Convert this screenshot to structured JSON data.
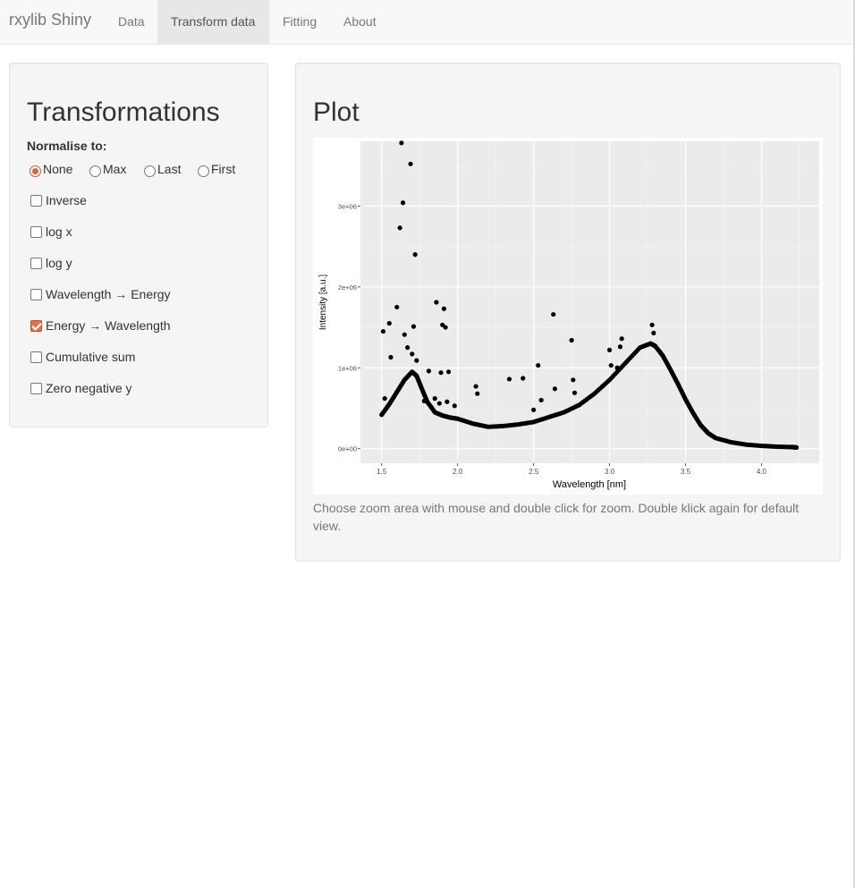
{
  "navbar": {
    "brand": "rxylib Shiny",
    "tabs": [
      {
        "label": "Data",
        "active": false
      },
      {
        "label": "Transform data",
        "active": true
      },
      {
        "label": "Fitting",
        "active": false
      },
      {
        "label": "About",
        "active": false
      }
    ]
  },
  "sidebar": {
    "title": "Transformations",
    "normalise_label": "Normalise to:",
    "normalise_options": [
      {
        "label": "None",
        "checked": true
      },
      {
        "label": "Max",
        "checked": false
      },
      {
        "label": "Last",
        "checked": false
      },
      {
        "label": "First",
        "checked": false
      }
    ],
    "checkboxes": [
      {
        "label": "Inverse",
        "checked": false
      },
      {
        "label": "log x",
        "checked": false
      },
      {
        "label": "log y",
        "checked": false
      },
      {
        "label": "Wavelength → Energy",
        "checked": false
      },
      {
        "label": "Energy → Wavelength",
        "checked": true
      },
      {
        "label": "Cumulative sum",
        "checked": false
      },
      {
        "label": "Zero negative y",
        "checked": false
      }
    ]
  },
  "main": {
    "title": "Plot",
    "note": "Choose zoom area with mouse and double click for zoom. Double klick again for default view."
  },
  "colors": {
    "accent": "#e3724a",
    "plot_panel": "#ebebeb",
    "points": "#000000"
  },
  "chart_data": {
    "type": "scatter",
    "xlabel": "Wavelength [nm]",
    "ylabel": "Intensity [a.u.]",
    "xlim": [
      1.36,
      4.38
    ],
    "ylim": [
      -180000,
      3800000
    ],
    "x_ticks": [
      1.5,
      2.0,
      2.5,
      3.0,
      3.5,
      4.0
    ],
    "x_tick_labels": [
      "1.5",
      "2.0",
      "2.5",
      "3.0",
      "3.5",
      "4.0"
    ],
    "y_ticks": [
      0,
      1000000,
      2000000,
      3000000
    ],
    "y_tick_labels": [
      "0e+00",
      "1e+06",
      "2e+06",
      "3e+06"
    ],
    "grid": true,
    "curve_x": [
      1.5,
      1.55,
      1.6,
      1.65,
      1.7,
      1.73,
      1.76,
      1.8,
      1.85,
      1.9,
      1.95,
      2.0,
      2.1,
      2.2,
      2.3,
      2.4,
      2.5,
      2.6,
      2.7,
      2.8,
      2.9,
      3.0,
      3.1,
      3.2,
      3.27,
      3.3,
      3.35,
      3.4,
      3.45,
      3.5,
      3.55,
      3.6,
      3.65,
      3.7,
      3.8,
      3.9,
      4.0,
      4.1,
      4.2,
      4.23
    ],
    "curve_y": [
      420000,
      550000,
      700000,
      850000,
      950000,
      900000,
      760000,
      580000,
      450000,
      410000,
      385000,
      370000,
      310000,
      270000,
      280000,
      300000,
      330000,
      390000,
      450000,
      540000,
      680000,
      850000,
      1050000,
      1250000,
      1300000,
      1270000,
      1150000,
      980000,
      800000,
      610000,
      440000,
      290000,
      190000,
      130000,
      80000,
      50000,
      35000,
      25000,
      20000,
      15000
    ],
    "scatter_x": [
      1.51,
      1.52,
      1.55,
      1.56,
      1.58,
      1.6,
      1.62,
      1.63,
      1.64,
      1.65,
      1.67,
      1.69,
      1.7,
      1.71,
      1.72,
      1.73,
      1.78,
      1.81,
      1.85,
      1.86,
      1.88,
      1.89,
      1.9,
      1.91,
      1.92,
      1.93,
      1.94,
      1.98,
      2.12,
      2.13,
      2.34,
      2.43,
      2.5,
      2.53,
      2.55,
      2.63,
      2.64,
      2.75,
      2.76,
      2.77,
      3.0,
      3.01,
      3.05,
      3.07,
      3.08,
      3.28,
      3.29
    ],
    "scatter_y": [
      1450000,
      620000,
      1550000,
      1130000,
      640000,
      1750000,
      2730000,
      3780000,
      3040000,
      1410000,
      1250000,
      3520000,
      1170000,
      1510000,
      2400000,
      1090000,
      590000,
      960000,
      620000,
      1810000,
      560000,
      940000,
      1530000,
      1730000,
      1500000,
      580000,
      950000,
      530000,
      770000,
      680000,
      860000,
      870000,
      480000,
      1030000,
      600000,
      1660000,
      740000,
      1340000,
      850000,
      690000,
      1220000,
      1030000,
      1000000,
      1260000,
      1360000,
      1530000,
      1430000
    ]
  }
}
